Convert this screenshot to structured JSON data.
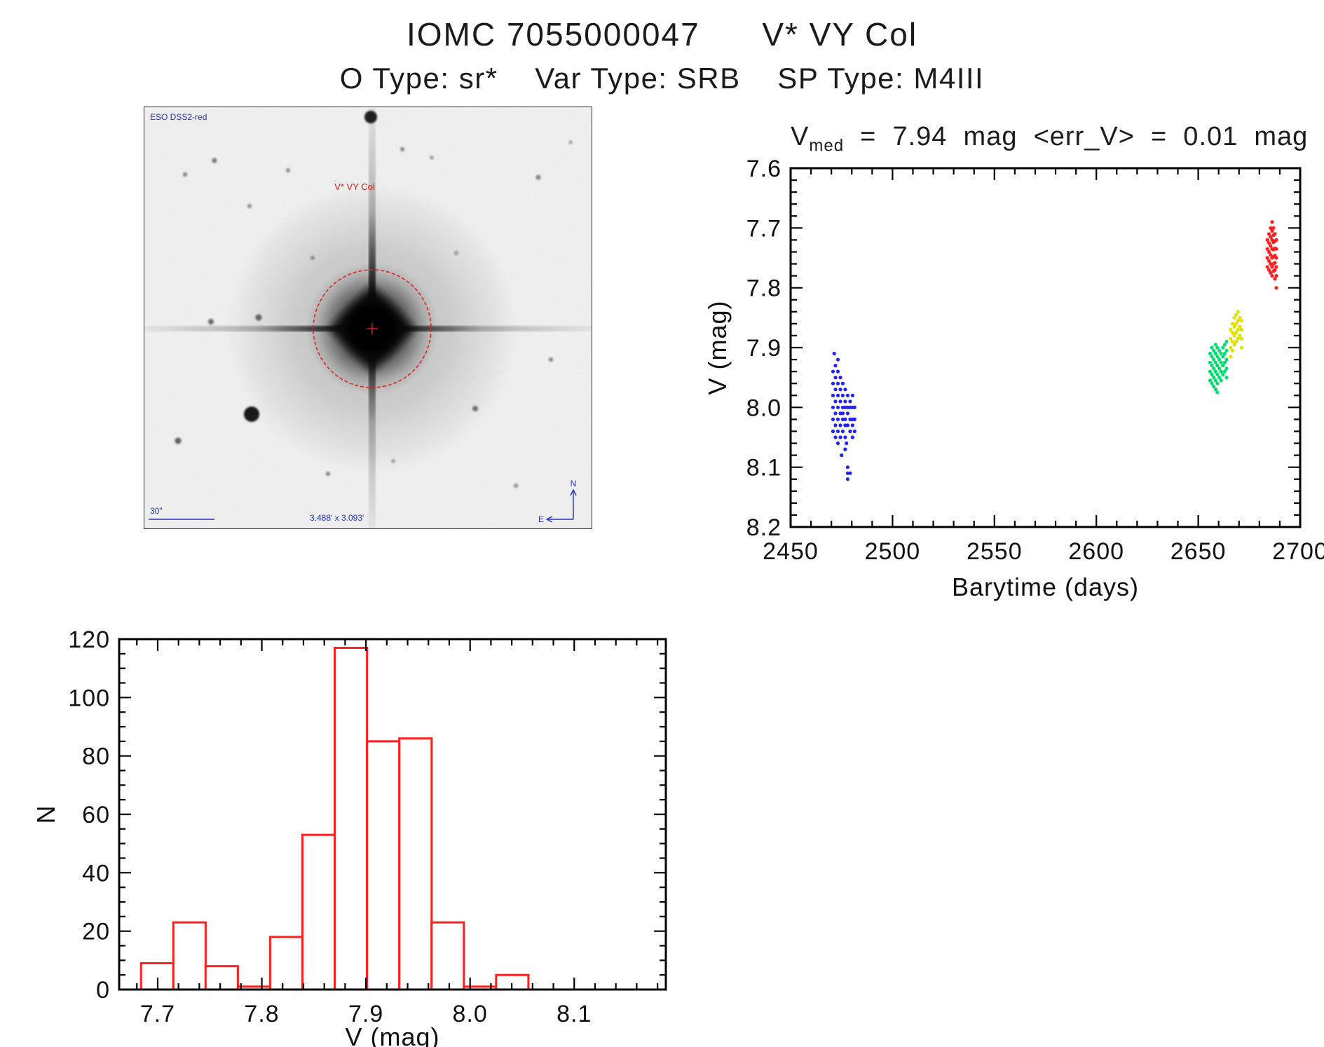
{
  "header": {
    "title": "IOMC 7055000047      V* VY Col",
    "subtitle": "O Type: sr*    Var Type: SRB    SP Type: M4III"
  },
  "sky_image": {
    "survey_label": "ESO DSS2-red",
    "target_label": "V* VY Col",
    "scale_bar_label": "30\"",
    "fov_label": "3.488' x 3.093'",
    "compass_north": "N",
    "compass_east": "E"
  },
  "chart_data": [
    {
      "id": "lightcurve",
      "type": "scatter",
      "title": "Vmed  =  7.94  mag  <err_V>  =  0.01  mag",
      "title_parts": {
        "lead": "V",
        "sub": "med",
        "rest": "  =  7.94  mag  <err_V>  =  0.01  mag"
      },
      "xlabel": "Barytime (days)",
      "ylabel": "V (mag)",
      "xlim": [
        2450,
        2700
      ],
      "ylim": [
        8.2,
        7.6
      ],
      "grid": false,
      "x_major_ticks": [
        2450,
        2500,
        2550,
        2600,
        2650,
        2700
      ],
      "x_tick_labels": [
        "2450",
        "2500",
        "2550",
        "2600",
        "2650",
        "2700"
      ],
      "x_minor_step": 10,
      "y_major_ticks": [
        8.2,
        8.1,
        8.0,
        7.9,
        7.8,
        7.7,
        7.6
      ],
      "y_tick_labels": [
        "8.2",
        "8.1",
        "8.0",
        "7.9",
        "7.8",
        "7.7",
        "7.6"
      ],
      "y_minor_step": 0.02,
      "series": [
        {
          "name": "epoch-1-blue",
          "color": "#2222ff",
          "points": [
            [
              2470.8,
              7.94
            ],
            [
              2470.8,
              7.96
            ],
            [
              2470.8,
              7.98
            ],
            [
              2470.8,
              8.0
            ],
            [
              2470.8,
              8.02
            ],
            [
              2470.8,
              8.04
            ],
            [
              2472.0,
              7.93
            ],
            [
              2472.0,
              7.95
            ],
            [
              2472.0,
              7.97
            ],
            [
              2472.0,
              7.99
            ],
            [
              2472.0,
              8.01
            ],
            [
              2472.0,
              8.03
            ],
            [
              2472.0,
              8.05
            ],
            [
              2473.2,
              7.92
            ],
            [
              2473.2,
              7.94
            ],
            [
              2473.2,
              7.96
            ],
            [
              2473.2,
              7.98
            ],
            [
              2473.2,
              8.0
            ],
            [
              2473.2,
              8.02
            ],
            [
              2473.2,
              8.04
            ],
            [
              2473.2,
              8.06
            ],
            [
              2474.4,
              7.95
            ],
            [
              2474.4,
              7.97
            ],
            [
              2474.4,
              7.99
            ],
            [
              2474.4,
              8.01
            ],
            [
              2474.4,
              8.03
            ],
            [
              2474.4,
              8.05
            ],
            [
              2475.6,
              7.96
            ],
            [
              2475.6,
              7.98
            ],
            [
              2475.6,
              8.0
            ],
            [
              2475.6,
              8.01
            ],
            [
              2475.6,
              8.02
            ],
            [
              2475.6,
              8.04
            ],
            [
              2476.8,
              7.97
            ],
            [
              2476.8,
              7.99
            ],
            [
              2476.8,
              8.0
            ],
            [
              2476.8,
              8.02
            ],
            [
              2476.8,
              8.03
            ],
            [
              2476.8,
              8.05
            ],
            [
              2476.8,
              8.07
            ],
            [
              2478.0,
              7.98
            ],
            [
              2478.0,
              8.0
            ],
            [
              2478.0,
              8.01
            ],
            [
              2478.0,
              8.03
            ],
            [
              2478.0,
              8.1
            ],
            [
              2478.0,
              8.11
            ],
            [
              2478.0,
              8.12
            ],
            [
              2479.2,
              7.99
            ],
            [
              2479.2,
              8.0
            ],
            [
              2479.2,
              8.02
            ],
            [
              2479.2,
              8.04
            ],
            [
              2479.2,
              8.11
            ],
            [
              2480.4,
              7.98
            ],
            [
              2480.4,
              8.0
            ],
            [
              2480.4,
              8.02
            ],
            [
              2480.4,
              8.03
            ],
            [
              2480.4,
              8.05
            ],
            [
              2481.4,
              8.0
            ],
            [
              2481.4,
              8.02
            ],
            [
              2481.4,
              8.04
            ],
            [
              2471.4,
              7.91
            ],
            [
              2475.0,
              8.08
            ],
            [
              2477.4,
              8.06
            ]
          ]
        },
        {
          "name": "epoch-2-green",
          "color": "#00dd70",
          "points": [
            [
              2655.8,
              7.91
            ],
            [
              2655.8,
              7.925
            ],
            [
              2655.8,
              7.94
            ],
            [
              2655.8,
              7.955
            ],
            [
              2656.7,
              7.9
            ],
            [
              2656.7,
              7.915
            ],
            [
              2656.7,
              7.93
            ],
            [
              2656.7,
              7.945
            ],
            [
              2656.7,
              7.96
            ],
            [
              2657.6,
              7.905
            ],
            [
              2657.6,
              7.92
            ],
            [
              2657.6,
              7.935
            ],
            [
              2657.6,
              7.95
            ],
            [
              2657.6,
              7.965
            ],
            [
              2658.5,
              7.895
            ],
            [
              2658.5,
              7.91
            ],
            [
              2658.5,
              7.925
            ],
            [
              2658.5,
              7.94
            ],
            [
              2658.5,
              7.955
            ],
            [
              2658.5,
              7.97
            ],
            [
              2659.4,
              7.9
            ],
            [
              2659.4,
              7.915
            ],
            [
              2659.4,
              7.93
            ],
            [
              2659.4,
              7.945
            ],
            [
              2659.4,
              7.96
            ],
            [
              2659.4,
              7.975
            ],
            [
              2660.3,
              7.905
            ],
            [
              2660.3,
              7.92
            ],
            [
              2660.3,
              7.935
            ],
            [
              2660.3,
              7.95
            ],
            [
              2661.2,
              7.91
            ],
            [
              2661.2,
              7.925
            ],
            [
              2661.2,
              7.94
            ],
            [
              2661.2,
              7.955
            ],
            [
              2662.1,
              7.9
            ],
            [
              2662.1,
              7.915
            ],
            [
              2662.1,
              7.93
            ],
            [
              2662.1,
              7.945
            ],
            [
              2663.0,
              7.895
            ],
            [
              2663.0,
              7.91
            ],
            [
              2663.0,
              7.925
            ],
            [
              2663.0,
              7.94
            ],
            [
              2663.9,
              7.89
            ],
            [
              2663.9,
              7.905
            ],
            [
              2663.9,
              7.92
            ],
            [
              2663.9,
              7.935
            ],
            [
              2663.9,
              7.95
            ]
          ]
        },
        {
          "name": "epoch-3-yellow",
          "color": "#e2e200",
          "points": [
            [
              2665.9,
              7.87
            ],
            [
              2665.9,
              7.885
            ],
            [
              2665.9,
              7.9
            ],
            [
              2665.9,
              7.915
            ],
            [
              2666.8,
              7.86
            ],
            [
              2666.8,
              7.875
            ],
            [
              2666.8,
              7.89
            ],
            [
              2666.8,
              7.905
            ],
            [
              2667.7,
              7.85
            ],
            [
              2667.7,
              7.865
            ],
            [
              2667.7,
              7.88
            ],
            [
              2667.7,
              7.895
            ],
            [
              2668.6,
              7.845
            ],
            [
              2668.6,
              7.86
            ],
            [
              2668.6,
              7.875
            ],
            [
              2668.6,
              7.89
            ],
            [
              2669.5,
              7.84
            ],
            [
              2669.5,
              7.855
            ],
            [
              2669.5,
              7.87
            ],
            [
              2669.5,
              7.885
            ],
            [
              2670.4,
              7.85
            ],
            [
              2670.4,
              7.865
            ],
            [
              2670.4,
              7.88
            ],
            [
              2671.3,
              7.855
            ],
            [
              2671.3,
              7.87
            ],
            [
              2671.3,
              7.885
            ],
            [
              2671.3,
              7.9
            ]
          ]
        },
        {
          "name": "epoch-4-red",
          "color": "#ff2020",
          "points": [
            [
              2683.9,
              7.72
            ],
            [
              2683.9,
              7.735
            ],
            [
              2683.9,
              7.75
            ],
            [
              2683.9,
              7.765
            ],
            [
              2684.7,
              7.71
            ],
            [
              2684.7,
              7.725
            ],
            [
              2684.7,
              7.74
            ],
            [
              2684.7,
              7.755
            ],
            [
              2684.7,
              7.77
            ],
            [
              2685.5,
              7.7
            ],
            [
              2685.5,
              7.715
            ],
            [
              2685.5,
              7.73
            ],
            [
              2685.5,
              7.745
            ],
            [
              2685.5,
              7.76
            ],
            [
              2685.5,
              7.775
            ],
            [
              2686.2,
              7.69
            ],
            [
              2686.2,
              7.705
            ],
            [
              2686.2,
              7.72
            ],
            [
              2686.2,
              7.735
            ],
            [
              2686.2,
              7.75
            ],
            [
              2686.2,
              7.765
            ],
            [
              2686.2,
              7.78
            ],
            [
              2686.9,
              7.7
            ],
            [
              2686.9,
              7.712
            ],
            [
              2686.9,
              7.724
            ],
            [
              2686.9,
              7.736
            ],
            [
              2686.9,
              7.748
            ],
            [
              2686.9,
              7.76
            ],
            [
              2686.9,
              7.772
            ],
            [
              2687.6,
              7.71
            ],
            [
              2687.6,
              7.722
            ],
            [
              2687.6,
              7.734
            ],
            [
              2687.6,
              7.746
            ],
            [
              2687.6,
              7.758
            ],
            [
              2687.6,
              7.77
            ],
            [
              2687.6,
              7.785
            ],
            [
              2688.3,
              7.72
            ],
            [
              2688.3,
              7.735
            ],
            [
              2688.3,
              7.75
            ],
            [
              2688.3,
              7.765
            ],
            [
              2688.3,
              7.78
            ],
            [
              2688.3,
              7.8
            ]
          ]
        }
      ]
    },
    {
      "id": "histogram",
      "type": "bar",
      "title": "",
      "xlabel": "V (mag)",
      "ylabel": "N",
      "xlim": [
        7.663,
        8.188
      ],
      "ylim": [
        0,
        120
      ],
      "grid": false,
      "x_major_ticks": [
        7.7,
        7.8,
        7.9,
        8.0,
        8.1
      ],
      "x_tick_labels": [
        "7.7",
        "7.8",
        "7.9",
        "8.0",
        "8.1"
      ],
      "x_minor_step": 0.02,
      "y_major_ticks": [
        0,
        20,
        40,
        60,
        80,
        100,
        120
      ],
      "y_tick_labels": [
        "0",
        "20",
        "40",
        "60",
        "80",
        "100",
        "120"
      ],
      "y_minor_step": 5,
      "bar_color": "#ff2020",
      "bin_start": 7.684,
      "bin_width": 0.031,
      "counts": [
        9,
        23,
        8,
        1,
        18,
        53,
        117,
        85,
        86,
        23,
        1,
        5
      ]
    }
  ]
}
